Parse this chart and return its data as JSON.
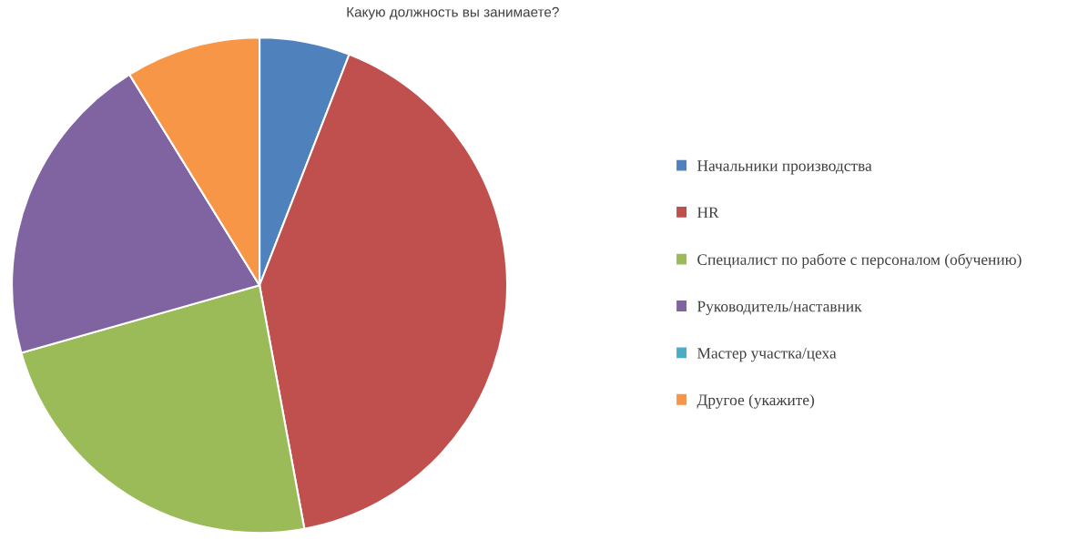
{
  "chart_data": {
    "type": "pie",
    "title": "Какую должность вы занимаете?",
    "categories": [
      "Начальники производства",
      "HR",
      "Специалист по работе с персоналом (обучению)",
      "Руководитель/наставник",
      "Мастер участка/цеха",
      "Другое (укажите)"
    ],
    "values": [
      5.9,
      41.2,
      23.5,
      20.6,
      0,
      8.8
    ],
    "colors": [
      "#4f81bd",
      "#c0504d",
      "#9bbb59",
      "#8064a2",
      "#4bacc6",
      "#f79646"
    ],
    "legend": "right"
  }
}
